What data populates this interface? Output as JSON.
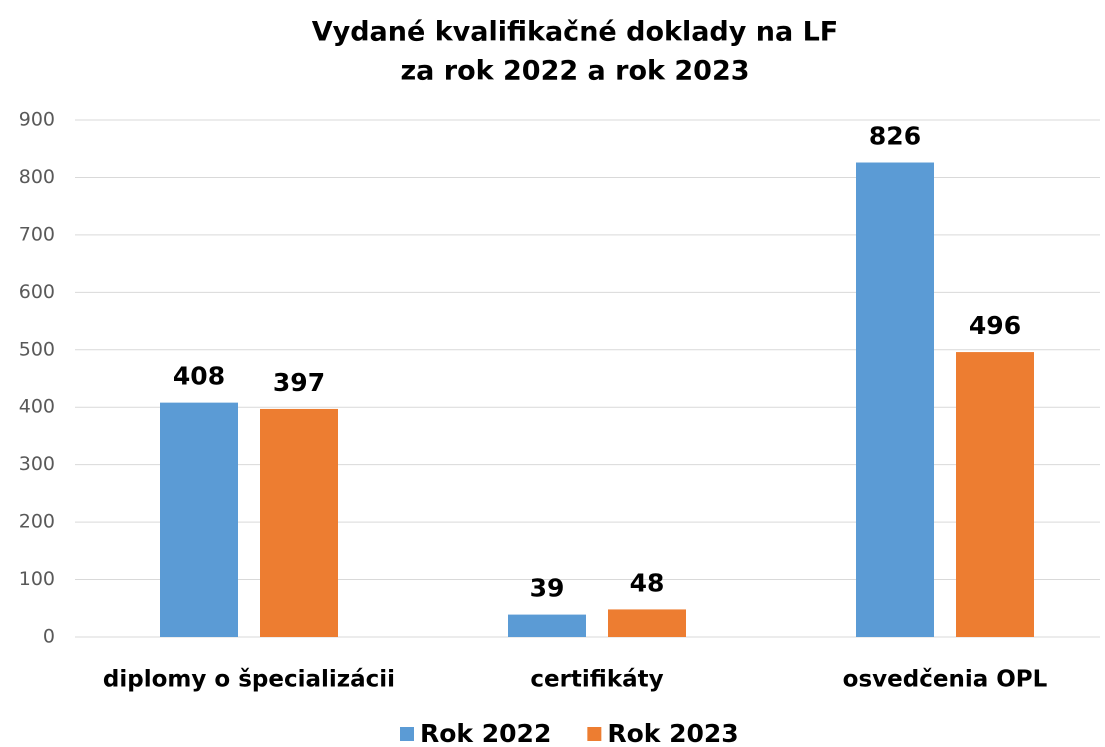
{
  "chart_data": {
    "type": "bar",
    "title": [
      "Vydané kvalifikačné doklady na LF",
      "za rok 2022 a rok 2023"
    ],
    "categories": [
      "diplomy o špecializácii",
      "certifikáty",
      "osvedčenia OPL"
    ],
    "series": [
      {
        "name": "Rok 2022",
        "color": "#5b9bd5",
        "values": [
          408,
          39,
          826
        ]
      },
      {
        "name": "Rok 2023",
        "color": "#ed7d31",
        "values": [
          397,
          48,
          496
        ]
      }
    ],
    "ylim": [
      0,
      900
    ],
    "yticks": [
      0,
      100,
      200,
      300,
      400,
      500,
      600,
      700,
      800,
      900
    ],
    "grid": true,
    "legend": "bottom"
  }
}
